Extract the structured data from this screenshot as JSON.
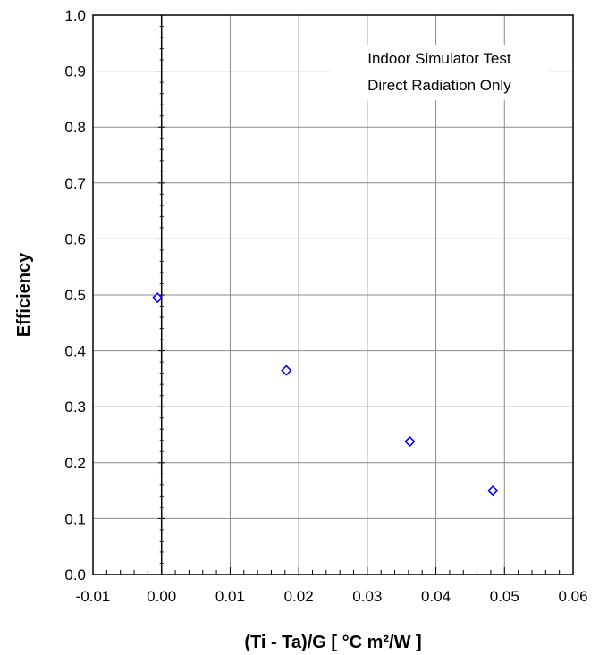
{
  "chart_data": {
    "type": "scatter",
    "xlabel": "(Ti - Ta)/G  [ °C m²/W ]",
    "ylabel": "Efficiency",
    "xlim": [
      -0.01,
      0.06
    ],
    "ylim": [
      0.0,
      1.0
    ],
    "x_ticks": [
      "-0.01",
      "0.00",
      "0.01",
      "0.02",
      "0.03",
      "0.04",
      "0.05",
      "0.06"
    ],
    "y_ticks": [
      "0.0",
      "0.1",
      "0.2",
      "0.3",
      "0.4",
      "0.5",
      "0.6",
      "0.7",
      "0.8",
      "0.9",
      "1.0"
    ],
    "grid": true,
    "annotation": {
      "lines": [
        "Indoor Simulator Test",
        "Direct Radiation Only"
      ],
      "placement": "top-right"
    },
    "series": [
      {
        "marker": "diamond-open",
        "color": "#0000ff",
        "points": [
          {
            "x": -0.0006,
            "y": 0.495
          },
          {
            "x": 0.0182,
            "y": 0.365
          },
          {
            "x": 0.0362,
            "y": 0.238
          },
          {
            "x": 0.0483,
            "y": 0.15
          }
        ]
      }
    ]
  }
}
